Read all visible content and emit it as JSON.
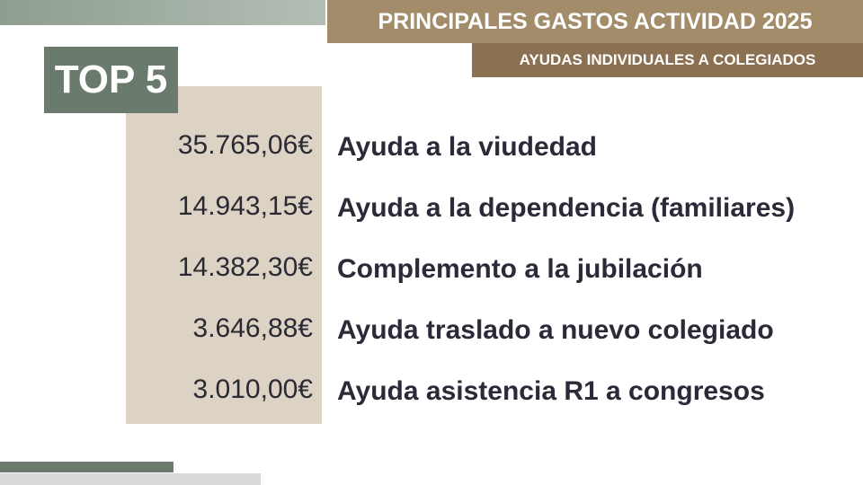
{
  "header": {
    "title": "PRINCIPALES GASTOS ACTIVIDAD 2025",
    "subtitle": "AYUDAS INDIVIDUALES A COLEGIADOS"
  },
  "badge": "TOP 5",
  "items": [
    {
      "amount": "35.765,06€",
      "label": "Ayuda a la viudedad"
    },
    {
      "amount": "14.943,15€",
      "label": "Ayuda a la dependencia (familiares)"
    },
    {
      "amount": "14.382,30€",
      "label": "Complemento a la jubilación"
    },
    {
      "amount": "3.646,88€",
      "label": "Ayuda traslado a nuevo colegiado"
    },
    {
      "amount": "3.010,00€",
      "label": "Ayuda asistencia R1 a congresos"
    }
  ]
}
